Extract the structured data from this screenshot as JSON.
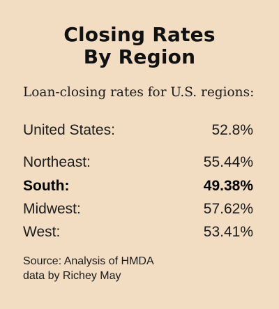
{
  "chart_data": {
    "type": "table",
    "title_line1": "Closing Rates",
    "title_line2": "By Region",
    "subtitle": "Loan-closing rates for U.S. regions:",
    "rows": [
      {
        "label": "United States:",
        "value": "52.8%",
        "numeric": 52.8
      },
      {
        "label": "Northeast:",
        "value": "55.44%",
        "numeric": 55.44
      },
      {
        "label": "South:",
        "value": "49.38%",
        "numeric": 49.38,
        "highlight": true
      },
      {
        "label": "Midwest:",
        "value": "57.62%",
        "numeric": 57.62
      },
      {
        "label": "West:",
        "value": "53.41%",
        "numeric": 53.41
      }
    ],
    "source_line1": "Source: Analysis of HMDA",
    "source_line2": "data by Richey May"
  },
  "colors": {
    "background": "#f2dcc2",
    "text": "#111111"
  }
}
